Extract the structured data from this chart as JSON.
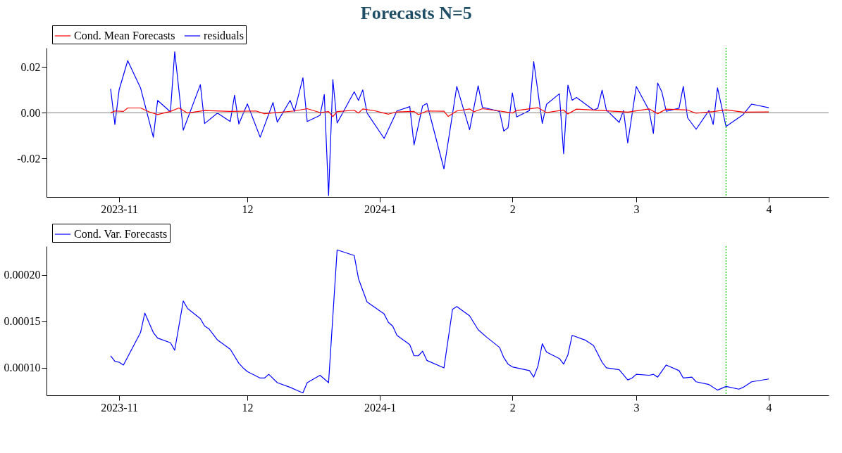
{
  "chart_data": [
    {
      "type": "line",
      "title": "Forecasts N=5",
      "legend": "top left",
      "grid": false,
      "marker": "none",
      "line_style": "solid",
      "xlim": [
        "2023-10-15",
        "2024-04-15"
      ],
      "xticks": [
        {
          "value": "2023-11-01",
          "label": "2023-11"
        },
        {
          "value": "2023-12-01",
          "label": "12"
        },
        {
          "value": "2024-01-01",
          "label": "2024-1"
        },
        {
          "value": "2024-02-01",
          "label": "2"
        },
        {
          "value": "2024-03-01",
          "label": "3"
        },
        {
          "value": "2024-04-01",
          "label": "4"
        }
      ],
      "ylim": [
        -0.0368,
        0.0284
      ],
      "yticks": [
        {
          "value": -0.02,
          "label": "-0.02"
        },
        {
          "value": 0,
          "label": "0.00"
        },
        {
          "value": 0.02,
          "label": "0.02"
        }
      ],
      "ref_lines": [
        {
          "axis": "y",
          "value": 0,
          "color": "#999999",
          "line_style": "solid"
        },
        {
          "axis": "x",
          "value": "2024-03-22",
          "color": "#00cc00",
          "line_style": "dotted"
        }
      ],
      "series": [
        {
          "name": "Cond. Mean Forecasts",
          "color": "#ff0000",
          "x": [
            "2023-10-30",
            "2023-10-31",
            "2023-11-02",
            "2023-11-03",
            "2023-11-06",
            "2023-11-08",
            "2023-11-10",
            "2023-11-13",
            "2023-11-15",
            "2023-11-17",
            "2023-11-21",
            "2023-11-27",
            "2023-12-03",
            "2023-12-05",
            "2023-12-12",
            "2023-12-15",
            "2023-12-18",
            "2023-12-20",
            "2023-12-21",
            "2023-12-22",
            "2023-12-26",
            "2023-12-27",
            "2023-12-28",
            "2023-12-31",
            "2024-01-03",
            "2024-01-05",
            "2024-01-09",
            "2024-01-10",
            "2024-01-12",
            "2024-01-16",
            "2024-01-17",
            "2024-01-19",
            "2024-01-22",
            "2024-01-23",
            "2024-01-25",
            "2024-01-29",
            "2024-02-01",
            "2024-02-02",
            "2024-02-07",
            "2024-02-09",
            "2024-02-13",
            "2024-02-14",
            "2024-02-16",
            "2024-02-22",
            "2024-02-28",
            "2024-03-04",
            "2024-03-06",
            "2024-03-08",
            "2024-03-13",
            "2024-03-15",
            "2024-03-19",
            "2024-03-22",
            "2024-03-26",
            "2024-04-01"
          ],
          "values": [
            0,
            0.0008,
            0.0006,
            0.0021,
            0.0021,
            0.0004,
            -0.0008,
            0.0006,
            0.0021,
            -0.0001,
            0.001,
            0.0006,
            0.0008,
            -0.0004,
            0.0008,
            0.0018,
            0.0001,
            0.0005,
            -0.0017,
            0.0005,
            0.0011,
            -0.0001,
            0.0017,
            0.0008,
            -0.0006,
            0.0004,
            0.0006,
            -0.0008,
            0.0008,
            0.0007,
            -0.0016,
            0.0008,
            0.0017,
            0.0004,
            0.0018,
            0.0008,
            -0.0001,
            0.001,
            0.0022,
            0.0001,
            0.0012,
            -0.0005,
            0.0016,
            0.001,
            0.0003,
            0.0017,
            -0.0004,
            0.0016,
            0.0012,
            -0.0002,
            0.0005,
            0.0013,
            0.0003,
            0.0004
          ]
        },
        {
          "name": "residuals",
          "color": "#0000ff",
          "x": [
            "2023-10-30",
            "2023-10-31",
            "2023-11-01",
            "2023-11-03",
            "2023-11-06",
            "2023-11-09",
            "2023-11-10",
            "2023-11-13",
            "2023-11-14",
            "2023-11-16",
            "2023-11-20",
            "2023-11-21",
            "2023-11-24",
            "2023-11-27",
            "2023-11-28",
            "2023-11-29",
            "2023-12-01",
            "2023-12-04",
            "2023-12-07",
            "2023-12-08",
            "2023-12-11",
            "2023-12-12",
            "2023-12-14",
            "2023-12-15",
            "2023-12-18",
            "2023-12-19",
            "2023-12-20",
            "2023-12-21",
            "2023-12-22",
            "2023-12-26",
            "2023-12-27",
            "2023-12-28",
            "2023-12-29",
            "2024-01-02",
            "2024-01-05",
            "2024-01-08",
            "2024-01-09",
            "2024-01-11",
            "2024-01-12",
            "2024-01-16",
            "2024-01-19",
            "2024-01-22",
            "2024-01-24",
            "2024-01-25",
            "2024-01-29",
            "2024-01-30",
            "2024-01-31",
            "2024-02-01",
            "2024-02-02",
            "2024-02-05",
            "2024-02-06",
            "2024-02-08",
            "2024-02-09",
            "2024-02-12",
            "2024-02-13",
            "2024-02-14",
            "2024-02-15",
            "2024-02-16",
            "2024-02-20",
            "2024-02-21",
            "2024-02-22",
            "2024-02-23",
            "2024-02-26",
            "2024-02-27",
            "2024-02-28",
            "2024-03-01",
            "2024-03-04",
            "2024-03-05",
            "2024-03-06",
            "2024-03-07",
            "2024-03-08",
            "2024-03-11",
            "2024-03-12",
            "2024-03-13",
            "2024-03-15",
            "2024-03-18",
            "2024-03-19",
            "2024-03-20",
            "2024-03-22",
            "2024-03-26",
            "2024-03-28",
            "2024-04-01"
          ],
          "values": [
            0.0105,
            -0.0051,
            0.0101,
            0.0228,
            0.0109,
            -0.0107,
            0.0054,
            0.0004,
            0.0267,
            -0.0076,
            0.0123,
            -0.0047,
            -0.0001,
            -0.0038,
            0.0077,
            -0.0049,
            0.0039,
            -0.0107,
            0.0045,
            -0.0041,
            0.0054,
            0.0006,
            0.0153,
            -0.0038,
            -0.0011,
            0.008,
            -0.0362,
            0.0145,
            -0.0045,
            0.0092,
            0.0054,
            0.01,
            -0.0001,
            -0.0112,
            0.0008,
            0.0027,
            -0.014,
            0.003,
            0.0041,
            -0.0245,
            0.0115,
            -0.0074,
            0.0118,
            0.0024,
            0.0006,
            -0.008,
            -0.0065,
            0.0087,
            -0.0018,
            0.001,
            0.0224,
            -0.0046,
            0.0037,
            0.0083,
            -0.0179,
            0.0121,
            0.0055,
            0.0067,
            0.0012,
            0.002,
            0.0099,
            0.0012,
            -0.0042,
            0.001,
            -0.0132,
            0.0115,
            0.001,
            -0.009,
            0.013,
            0.009,
            0.0007,
            0.002,
            0.0115,
            -0.0022,
            -0.0072,
            0.001,
            -0.0051,
            0.0109,
            -0.006,
            -0.0008,
            0.0038,
            0.0022
          ]
        }
      ]
    },
    {
      "type": "line",
      "legend": "top left",
      "grid": false,
      "marker": "none",
      "line_style": "solid",
      "xlim": [
        "2023-10-15",
        "2024-04-15"
      ],
      "xticks": [
        {
          "value": "2023-11-01",
          "label": "2023-11"
        },
        {
          "value": "2023-12-01",
          "label": "12"
        },
        {
          "value": "2024-01-01",
          "label": "2024-1"
        },
        {
          "value": "2024-02-01",
          "label": "2"
        },
        {
          "value": "2024-03-01",
          "label": "3"
        },
        {
          "value": "2024-04-01",
          "label": "4"
        }
      ],
      "ylim": [
        7.04e-05,
        0.000231
      ],
      "yticks": [
        {
          "value": 0.0001,
          "label": "0.00010"
        },
        {
          "value": 0.00015,
          "label": "0.00015"
        },
        {
          "value": 0.0002,
          "label": "0.00020"
        }
      ],
      "ref_lines": [
        {
          "axis": "x",
          "value": "2024-03-22",
          "color": "#00cc00",
          "line_style": "dotted"
        }
      ],
      "series": [
        {
          "name": "Cond. Var. Forecasts",
          "color": "#0000ff",
          "x": [
            "2023-10-30",
            "2023-10-31",
            "2023-11-01",
            "2023-11-02",
            "2023-11-06",
            "2023-11-07",
            "2023-11-09",
            "2023-11-10",
            "2023-11-13",
            "2023-11-14",
            "2023-11-16",
            "2023-11-17",
            "2023-11-20",
            "2023-11-21",
            "2023-11-22",
            "2023-11-24",
            "2023-11-27",
            "2023-11-29",
            "2023-11-30",
            "2023-12-01",
            "2023-12-04",
            "2023-12-05",
            "2023-12-06",
            "2023-12-08",
            "2023-12-11",
            "2023-12-13",
            "2023-12-14",
            "2023-12-15",
            "2023-12-18",
            "2023-12-20",
            "2023-12-22",
            "2023-12-26",
            "2023-12-27",
            "2023-12-29",
            "2024-01-02",
            "2024-01-03",
            "2024-01-04",
            "2024-01-05",
            "2024-01-08",
            "2024-01-09",
            "2024-01-10",
            "2024-01-11",
            "2024-01-12",
            "2024-01-16",
            "2024-01-18",
            "2024-01-19",
            "2024-01-22",
            "2024-01-24",
            "2024-01-26",
            "2024-01-29",
            "2024-01-30",
            "2024-01-31",
            "2024-02-01",
            "2024-02-05",
            "2024-02-06",
            "2024-02-07",
            "2024-02-08",
            "2024-02-09",
            "2024-02-12",
            "2024-02-13",
            "2024-02-14",
            "2024-02-15",
            "2024-02-18",
            "2024-02-20",
            "2024-02-22",
            "2024-02-23",
            "2024-02-26",
            "2024-02-28",
            "2024-02-29",
            "2024-03-01",
            "2024-03-04",
            "2024-03-05",
            "2024-03-06",
            "2024-03-08",
            "2024-03-11",
            "2024-03-12",
            "2024-03-14",
            "2024-03-15",
            "2024-03-18",
            "2024-03-20",
            "2024-03-22",
            "2024-03-25",
            "2024-03-26",
            "2024-03-28",
            "2024-04-01"
          ],
          "values": [
            0.000113,
            0.000107,
            0.000106,
            0.000103,
            0.000138,
            0.000159,
            0.000138,
            0.000132,
            0.000127,
            0.000119,
            0.000172,
            0.000164,
            0.000153,
            0.000145,
            0.000142,
            0.00013,
            0.00012,
            0.000105,
            0.0001,
            9.6e-05,
            8.9e-05,
            8.9e-05,
            9.3e-05,
            8.4e-05,
            7.9e-05,
            7.5e-05,
            7.3e-05,
            8.4e-05,
            9.2e-05,
            8.4e-05,
            0.000227,
            0.000221,
            0.000196,
            0.000171,
            0.000158,
            0.000149,
            0.000145,
            0.000135,
            0.000125,
            0.000113,
            0.000113,
            0.000118,
            0.000108,
            0.0001,
            0.000163,
            0.000166,
            0.000156,
            0.000141,
            0.000133,
            0.000122,
            0.000111,
            0.000104,
            0.000101,
            9.7e-05,
            9e-05,
            0.000102,
            0.000126,
            0.000117,
            0.00011,
            0.000104,
            0.000114,
            0.000135,
            0.00013,
            0.000124,
            0.000106,
            0.0001,
            9.8e-05,
            8.7e-05,
            8.9e-05,
            9.3e-05,
            9.2e-05,
            9.3e-05,
            9e-05,
            0.000103,
            9.7e-05,
            8.9e-05,
            9e-05,
            8.5e-05,
            8.2e-05,
            7.6e-05,
            8e-05,
            7.7e-05,
            7.9e-05,
            8.5e-05,
            8.8e-05
          ]
        }
      ]
    }
  ]
}
